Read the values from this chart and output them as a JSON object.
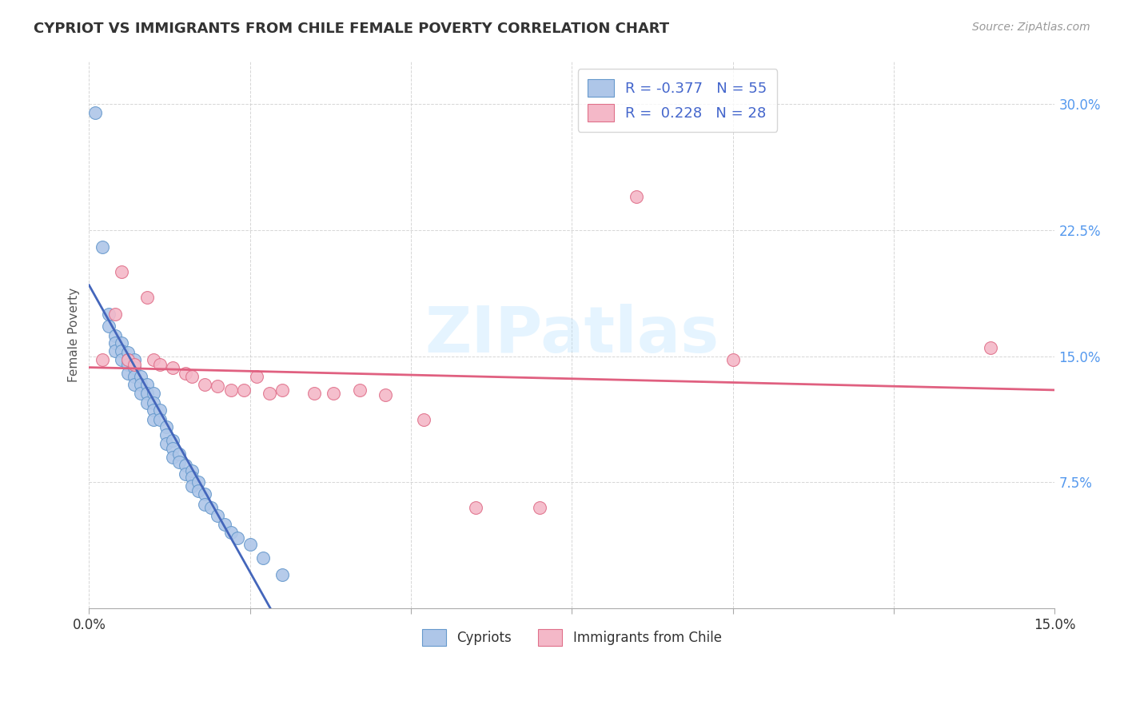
{
  "title": "CYPRIOT VS IMMIGRANTS FROM CHILE FEMALE POVERTY CORRELATION CHART",
  "source": "Source: ZipAtlas.com",
  "ylabel": "Female Poverty",
  "xlim": [
    0.0,
    0.15
  ],
  "ylim": [
    0.0,
    0.325
  ],
  "watermark": "ZIPatlas",
  "legend_r1": "R = -0.377",
  "legend_n1": "N = 55",
  "legend_r2": "R =  0.228",
  "legend_n2": "N = 28",
  "blue_fill": "#aec6e8",
  "blue_edge": "#6699cc",
  "pink_fill": "#f4b8c8",
  "pink_edge": "#e0708a",
  "line_blue": "#4466bb",
  "line_pink": "#e06080",
  "label1": "Cypriots",
  "label2": "Immigrants from Chile",
  "cypriot_x": [
    0.001,
    0.002,
    0.003,
    0.003,
    0.004,
    0.004,
    0.004,
    0.005,
    0.005,
    0.005,
    0.006,
    0.006,
    0.006,
    0.006,
    0.007,
    0.007,
    0.007,
    0.007,
    0.008,
    0.008,
    0.008,
    0.009,
    0.009,
    0.009,
    0.01,
    0.01,
    0.01,
    0.01,
    0.011,
    0.011,
    0.012,
    0.012,
    0.012,
    0.013,
    0.013,
    0.013,
    0.014,
    0.014,
    0.015,
    0.015,
    0.016,
    0.016,
    0.016,
    0.017,
    0.017,
    0.018,
    0.018,
    0.019,
    0.02,
    0.021,
    0.022,
    0.023,
    0.025,
    0.027,
    0.03
  ],
  "cypriot_y": [
    0.295,
    0.215,
    0.175,
    0.168,
    0.162,
    0.158,
    0.153,
    0.158,
    0.153,
    0.148,
    0.152,
    0.148,
    0.145,
    0.14,
    0.148,
    0.143,
    0.138,
    0.133,
    0.138,
    0.133,
    0.128,
    0.133,
    0.128,
    0.122,
    0.128,
    0.122,
    0.118,
    0.112,
    0.118,
    0.112,
    0.108,
    0.103,
    0.098,
    0.1,
    0.095,
    0.09,
    0.092,
    0.087,
    0.085,
    0.08,
    0.082,
    0.078,
    0.073,
    0.075,
    0.07,
    0.068,
    0.062,
    0.06,
    0.055,
    0.05,
    0.045,
    0.042,
    0.038,
    0.03,
    0.02
  ],
  "chile_x": [
    0.002,
    0.004,
    0.005,
    0.006,
    0.007,
    0.009,
    0.01,
    0.011,
    0.013,
    0.015,
    0.016,
    0.018,
    0.02,
    0.022,
    0.024,
    0.026,
    0.028,
    0.03,
    0.035,
    0.038,
    0.042,
    0.046,
    0.052,
    0.06,
    0.07,
    0.085,
    0.1,
    0.14
  ],
  "chile_y": [
    0.148,
    0.175,
    0.2,
    0.148,
    0.145,
    0.185,
    0.148,
    0.145,
    0.143,
    0.14,
    0.138,
    0.133,
    0.132,
    0.13,
    0.13,
    0.138,
    0.128,
    0.13,
    0.128,
    0.128,
    0.13,
    0.127,
    0.112,
    0.06,
    0.06,
    0.245,
    0.148,
    0.155
  ]
}
